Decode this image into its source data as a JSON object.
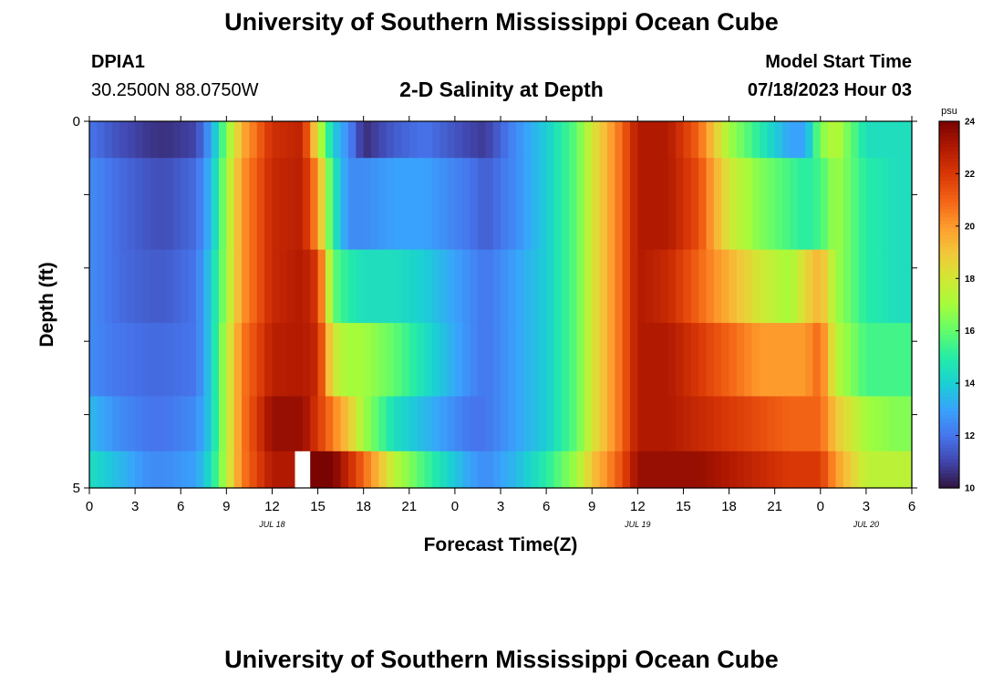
{
  "page_title": "University of Southern Mississippi Ocean Cube",
  "station": {
    "id": "DPIA1",
    "coords": "30.2500N  88.0750W"
  },
  "plot_title": "2-D Salinity at Depth",
  "model_start": {
    "label": "Model Start Time",
    "value": "07/18/2023 Hour 03"
  },
  "footer_title": "University of Southern Mississippi Ocean Cube",
  "colors": {
    "colormap": [
      "#30123b",
      "#4145ab",
      "#4675ed",
      "#39a2fc",
      "#1bcfd4",
      "#24eca6",
      "#61fc6c",
      "#a4fc3b",
      "#d1e834",
      "#f3c63a",
      "#fe9b2d",
      "#f36315",
      "#d93806",
      "#b11901",
      "#7a0402"
    ],
    "missing": "#ffffff"
  },
  "chart_data": {
    "type": "heatmap",
    "title": "2-D Salinity at Depth",
    "xlabel": "Forecast Time(Z)",
    "ylabel": "Depth (ft)",
    "colorbar_label": "psu",
    "colorbar_ticks": [
      "10",
      "12",
      "14",
      "16",
      "18",
      "20",
      "22",
      "24"
    ],
    "value_range": [
      10,
      24
    ],
    "x_ticks": [
      "0",
      "3",
      "6",
      "9",
      "12",
      "15",
      "18",
      "21",
      "0",
      "3",
      "6",
      "9",
      "12",
      "15",
      "18",
      "21",
      "0",
      "3",
      "6"
    ],
    "date_labels": [
      {
        "text": "JUL 18",
        "hour": 12
      },
      {
        "text": "JUL 19",
        "hour": 36
      },
      {
        "text": "JUL 20",
        "hour": 51
      }
    ],
    "y_ticks": [
      "0",
      "5"
    ],
    "x_range_hours": [
      0,
      54
    ],
    "y_range_ft": [
      0,
      5
    ],
    "depth_rows_ft": [
      0.25,
      1.25,
      2.25,
      3.25,
      4.25,
      4.75
    ],
    "keyframes_hours": [
      0,
      2,
      4,
      5,
      7,
      8,
      9,
      10,
      12,
      14,
      15,
      16,
      17,
      18,
      20,
      22,
      25,
      26,
      28,
      30,
      32,
      33,
      35,
      36,
      38,
      40,
      42,
      44,
      46,
      47,
      48,
      49,
      51,
      53,
      54
    ],
    "keyframe_values": [
      [
        12.0,
        11.2,
        10.7,
        10.6,
        11.0,
        13.0,
        16.5,
        19.5,
        22.3,
        22.7,
        18.0,
        14.0,
        12.5,
        10.5,
        11.5,
        12.0,
        11.0,
        10.8,
        12.5,
        14.0,
        16.0,
        18.0,
        21.0,
        23.0,
        23.0,
        21.0,
        17.0,
        15.0,
        13.0,
        13.0,
        16.5,
        17.5,
        14.5,
        14.5,
        14.5
      ],
      [
        12.5,
        11.8,
        11.3,
        11.2,
        11.8,
        13.5,
        17.0,
        20.0,
        22.5,
        22.8,
        20.0,
        15.0,
        12.5,
        12.5,
        13.0,
        13.0,
        12.0,
        11.5,
        12.5,
        14.0,
        16.0,
        18.0,
        21.0,
        23.0,
        23.0,
        21.5,
        18.0,
        16.5,
        15.5,
        15.0,
        15.5,
        17.0,
        15.0,
        14.5,
        14.5
      ],
      [
        12.5,
        11.8,
        11.5,
        11.5,
        12.0,
        14.0,
        17.0,
        20.0,
        22.5,
        23.0,
        22.0,
        16.0,
        15.0,
        14.5,
        14.5,
        14.0,
        12.5,
        12.0,
        13.0,
        14.0,
        16.0,
        18.0,
        21.0,
        23.0,
        22.5,
        21.0,
        19.5,
        18.0,
        17.0,
        18.5,
        19.5,
        17.0,
        15.0,
        14.5,
        14.5
      ],
      [
        12.5,
        12.0,
        11.8,
        11.8,
        12.0,
        14.0,
        17.5,
        20.5,
        22.8,
        23.0,
        22.5,
        18.0,
        17.0,
        17.0,
        16.0,
        14.5,
        12.5,
        12.0,
        13.0,
        14.0,
        16.0,
        18.0,
        21.0,
        23.0,
        23.0,
        22.0,
        21.0,
        20.0,
        20.0,
        20.0,
        21.0,
        17.5,
        15.5,
        15.5,
        15.5
      ],
      [
        13.5,
        12.5,
        12.0,
        12.0,
        12.5,
        14.0,
        17.5,
        20.5,
        23.5,
        23.5,
        22.0,
        20.5,
        19.0,
        17.0,
        14.5,
        13.5,
        12.0,
        12.0,
        13.0,
        14.0,
        16.0,
        18.0,
        21.0,
        23.0,
        23.0,
        22.5,
        22.0,
        21.5,
        21.0,
        21.0,
        21.0,
        19.0,
        17.0,
        16.5,
        16.5
      ],
      [
        14.5,
        13.5,
        12.5,
        12.5,
        13.0,
        14.5,
        17.5,
        20.5,
        23.0,
        null,
        24.5,
        24.0,
        22.5,
        21.0,
        17.5,
        15.5,
        13.0,
        12.5,
        13.5,
        15.0,
        17.0,
        19.0,
        21.5,
        23.5,
        23.5,
        23.5,
        23.0,
        22.5,
        22.0,
        22.0,
        22.0,
        20.0,
        17.5,
        17.5,
        17.5
      ]
    ],
    "missing_note": null,
    "x_unit": "hours from 07/18/2023 00Z"
  }
}
